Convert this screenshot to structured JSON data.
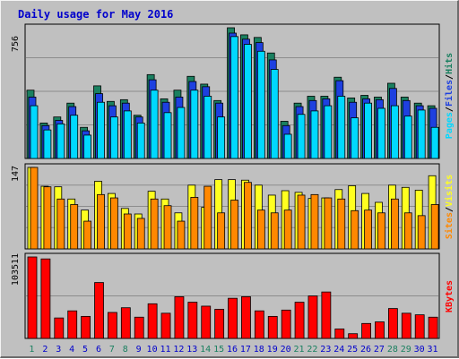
{
  "colors": {
    "background": "#c0c0c0",
    "plot": "#c0c0c0",
    "grid": "#8c8c8c",
    "title": "#0000cc",
    "hits": "#1a8060",
    "files": "#1e40e0",
    "pages": "#00d8ff",
    "visits": "#ffff20",
    "sites": "#ff8800",
    "kbytes": "#ff0000",
    "weekend_day": "#1a8060",
    "weekday": "#0000cc"
  },
  "chart_data": [
    {
      "type": "bar",
      "title": "Daily usage for May 2016",
      "categories": [
        "1",
        "2",
        "3",
        "4",
        "5",
        "6",
        "7",
        "8",
        "9",
        "10",
        "11",
        "12",
        "13",
        "14",
        "15",
        "16",
        "17",
        "18",
        "19",
        "20",
        "21",
        "22",
        "23",
        "24",
        "25",
        "26",
        "27",
        "28",
        "29",
        "30",
        "31"
      ],
      "weekend": [
        1,
        7,
        8,
        14,
        15,
        21,
        22,
        28,
        29
      ],
      "ymax_label": "756",
      "ylim": [
        0,
        756
      ],
      "series_label_parts": [
        "Pages",
        "/",
        "Files",
        "/",
        "Hits"
      ],
      "series": [
        {
          "name": "Hits",
          "values": [
            395,
            205,
            240,
            320,
            180,
            420,
            330,
            340,
            250,
            485,
            345,
            395,
            475,
            430,
            335,
            760,
            715,
            700,
            610,
            215,
            320,
            360,
            360,
            470,
            350,
            365,
            355,
            435,
            355,
            320,
            305
          ]
        },
        {
          "name": "Files",
          "values": [
            355,
            190,
            220,
            300,
            160,
            375,
            305,
            320,
            240,
            455,
            325,
            355,
            445,
            415,
            320,
            725,
            690,
            670,
            570,
            190,
            300,
            335,
            345,
            450,
            325,
            345,
            340,
            405,
            335,
            305,
            290
          ]
        },
        {
          "name": "Pages",
          "values": [
            305,
            165,
            200,
            250,
            135,
            325,
            240,
            275,
            205,
            395,
            265,
            295,
            395,
            360,
            240,
            705,
            660,
            620,
            515,
            140,
            255,
            275,
            305,
            360,
            235,
            320,
            290,
            305,
            245,
            280,
            180
          ]
        }
      ]
    },
    {
      "type": "bar",
      "ymax_label": "147",
      "ylim": [
        0,
        147
      ],
      "series_label_parts": [
        "Sites",
        "/",
        "Visits"
      ],
      "series": [
        {
          "name": "Visits",
          "values": [
            148,
            113,
            112,
            90,
            70,
            122,
            100,
            73,
            63,
            104,
            90,
            65,
            115,
            75,
            125,
            125,
            124,
            115,
            97,
            105,
            102,
            91,
            92,
            107,
            114,
            100,
            84,
            115,
            111,
            106,
            132
          ]
        },
        {
          "name": "Sites",
          "values": [
            148,
            112,
            90,
            80,
            50,
            98,
            92,
            63,
            55,
            90,
            78,
            50,
            93,
            113,
            65,
            88,
            120,
            70,
            65,
            70,
            97,
            98,
            92,
            90,
            69,
            70,
            65,
            90,
            65,
            60,
            80
          ]
        }
      ]
    },
    {
      "type": "bar",
      "ymax_label": "103511",
      "ylim": [
        0,
        103511
      ],
      "series_label_parts": [
        "KBytes"
      ],
      "series": [
        {
          "name": "KBytes",
          "values": [
            103511,
            101000,
            26000,
            35000,
            28000,
            71000,
            33000,
            39000,
            27000,
            44000,
            32000,
            53000,
            46000,
            41000,
            37000,
            51000,
            53000,
            35000,
            28000,
            36000,
            46000,
            54000,
            59000,
            12000,
            6000,
            19000,
            21000,
            38000,
            32000,
            30000,
            27000
          ]
        }
      ]
    }
  ]
}
